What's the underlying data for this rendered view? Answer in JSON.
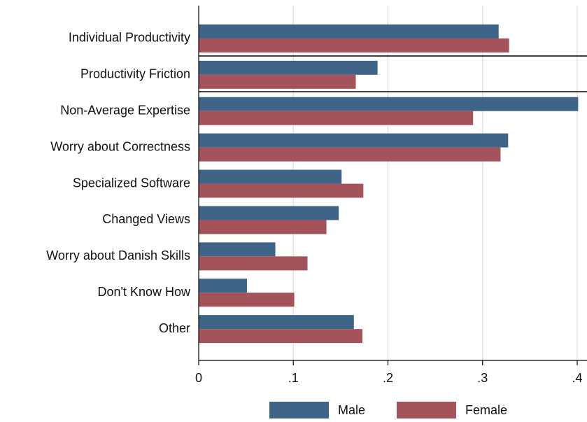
{
  "chart_data": {
    "type": "hbar",
    "categories": [
      "Individual Productivity",
      "Productivity Friction",
      "Non-Average Expertise",
      "Worry about Correctness",
      "Specialized Software",
      "Changed Views",
      "Worry about Danish Skills",
      "Don't Know How",
      "Other"
    ],
    "series": [
      {
        "name": "Male",
        "color": "#3e6487",
        "values": [
          0.317,
          0.189,
          0.401,
          0.327,
          0.151,
          0.148,
          0.081,
          0.051,
          0.164
        ]
      },
      {
        "name": "Female",
        "color": "#a5535a",
        "values": [
          0.328,
          0.166,
          0.29,
          0.319,
          0.174,
          0.135,
          0.115,
          0.101,
          0.173
        ]
      }
    ],
    "xlim": [
      0,
      0.4
    ],
    "xticks": [
      0,
      {
        "value": 0.1,
        "label": ".1"
      },
      {
        "value": 0.2,
        "label": ".2"
      },
      {
        "value": 0.3,
        "label": ".3"
      },
      {
        "value": 0.4,
        "label": ".4"
      }
    ],
    "grid": true,
    "legend": "bottom"
  }
}
